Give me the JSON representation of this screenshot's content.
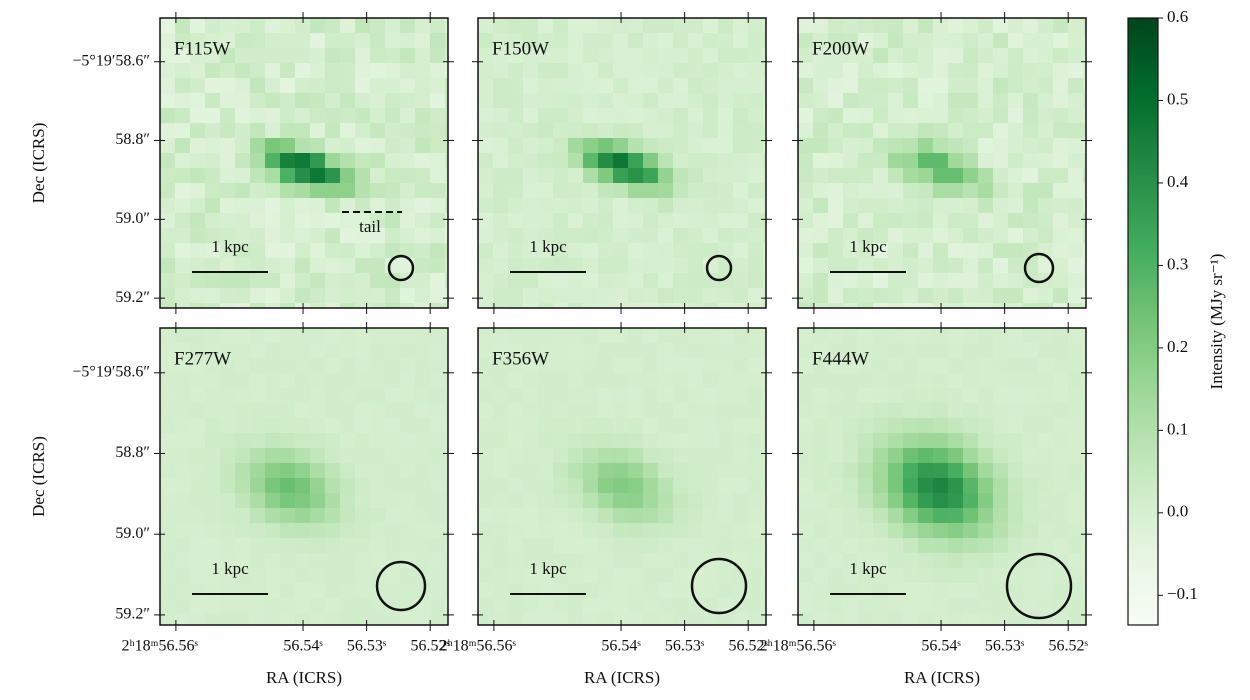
{
  "chart_data": {
    "type": "image-grid",
    "panels": [
      {
        "title": "F115W"
      },
      {
        "title": "F150W"
      },
      {
        "title": "F200W"
      },
      {
        "title": "F277W"
      },
      {
        "title": "F356W"
      },
      {
        "title": "F444W"
      }
    ],
    "xlabel": "RA (ICRS)",
    "ylabel": "Dec (ICRS)",
    "xlim": [
      56.5625,
      56.5172
    ],
    "xticks": [
      {
        "value": 56.56,
        "label": "2ʰ18ᵐ56.56ˢ"
      },
      {
        "value": 56.54,
        "label": "56.54ˢ"
      },
      {
        "value": 56.53,
        "label": "56.53ˢ"
      },
      {
        "value": 56.52,
        "label": "56.52ˢ"
      }
    ],
    "ylim": [
      58.489,
      59.225
    ],
    "yticks": [
      {
        "value": 58.6,
        "label": "−5°19′58.6″"
      },
      {
        "value": 58.8,
        "label": "58.8″"
      },
      {
        "value": 59.0,
        "label": "59.0″"
      },
      {
        "value": 59.2,
        "label": "59.2″"
      }
    ],
    "scale_bar_label": "1 kpc",
    "annotation": "tail",
    "colorbar": {
      "label": "Intensity (MJy sr⁻¹)",
      "lim": [
        -0.136,
        0.6
      ],
      "ticks": [
        {
          "value": -0.1,
          "label": "−0.1"
        },
        {
          "value": 0,
          "label": "0.0"
        },
        0.1,
        0.2,
        0.3,
        0.4,
        0.5,
        0.6
      ],
      "cmap": [
        "#f7fcf5",
        "#e5f5e0",
        "#c7e9c0",
        "#a1d99b",
        "#74c476",
        "#41ab5d",
        "#238b45",
        "#006d2c",
        "#00441b"
      ]
    }
  }
}
